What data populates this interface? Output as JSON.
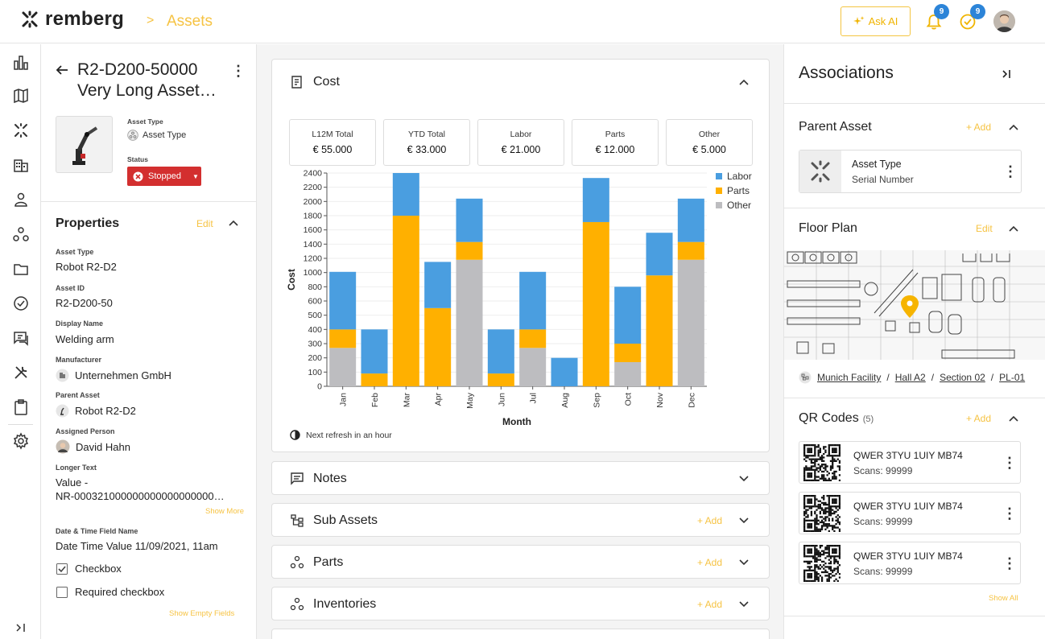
{
  "header": {
    "logo_text": "remberg",
    "breadcrumb_sep": ">",
    "breadcrumb": "Assets",
    "ask_ai": "Ask AI",
    "notif_count": "9",
    "tasks_count": "9"
  },
  "asset": {
    "title_line1": "R2-D200-50000",
    "title_line2": "Very Long Asset…",
    "type_label": "Asset Type",
    "type_value": "Asset Type",
    "status_label": "Status",
    "status_value": "Stopped"
  },
  "properties": {
    "title": "Properties",
    "edit": "Edit",
    "fields": [
      {
        "label": "Asset Type",
        "value": "Robot R2-D2"
      },
      {
        "label": "Asset ID",
        "value": "R2-D200-50"
      },
      {
        "label": "Display Name",
        "value": "Welding arm"
      },
      {
        "label": "Manufacturer",
        "value": "Unternehmen GmbH"
      },
      {
        "label": "Parent Asset",
        "value": "Robot R2-D2"
      },
      {
        "label": "Assigned Person",
        "value": "David Hahn"
      },
      {
        "label": "Longer Text",
        "value": "Value -",
        "value2": "NR-000321000000000000000000…"
      },
      {
        "label": "Date & Time Field Name",
        "value": "Date Time Value 11/09/2021, 11am"
      }
    ],
    "show_more": "Show More",
    "checkbox1": "Checkbox",
    "checkbox2": "Required checkbox",
    "show_empty": "Show Empty Fields"
  },
  "cost": {
    "title": "Cost",
    "tiles": [
      {
        "label": "L12M Total",
        "value": "€ 55.000"
      },
      {
        "label": "YTD Total",
        "value": "€ 33.000"
      },
      {
        "label": "Labor",
        "value": "€ 21.000"
      },
      {
        "label": "Parts",
        "value": "€ 12.000"
      },
      {
        "label": "Other",
        "value": "€ 5.000"
      }
    ],
    "refresh": "Next refresh in an hour"
  },
  "chart_data": {
    "type": "bar",
    "stacked": true,
    "xlabel": "Month",
    "ylabel": "Cost",
    "ylim": [
      0,
      2400
    ],
    "yticks": [
      0,
      100,
      200,
      300,
      400,
      500,
      600,
      800,
      1000,
      1200,
      1400,
      1600,
      1800,
      2000,
      2200,
      2400
    ],
    "categories": [
      "Jan",
      "Feb",
      "Mar",
      "Apr",
      "May",
      "Jun",
      "Jul",
      "Aug",
      "Sep",
      "Oct",
      "Nov",
      "Dec"
    ],
    "series": [
      {
        "name": "Other",
        "color": "#bdbdc0",
        "values": [
          270,
          0,
          0,
          0,
          1180,
          0,
          270,
          0,
          0,
          170,
          0,
          1180
        ]
      },
      {
        "name": "Parts",
        "color": "#ffb000",
        "values": [
          130,
          90,
          1800,
          550,
          250,
          90,
          130,
          0,
          1710,
          130,
          960,
          250
        ]
      },
      {
        "name": "Labor",
        "color": "#4a9ee0",
        "values": [
          610,
          310,
          600,
          600,
          610,
          310,
          610,
          200,
          620,
          500,
          600,
          610
        ]
      }
    ],
    "legend": [
      "Labor",
      "Parts",
      "Other"
    ]
  },
  "sections": [
    {
      "title": "Notes",
      "add": ""
    },
    {
      "title": "Sub Assets",
      "add": "+ Add"
    },
    {
      "title": "Parts",
      "add": "+ Add"
    },
    {
      "title": "Inventories",
      "add": "+ Add"
    }
  ],
  "associations": {
    "title": "Associations",
    "parent_asset": {
      "title": "Parent Asset",
      "add": "+ Add",
      "name": "Asset Type",
      "serial": "Serial Number"
    },
    "floor_plan": {
      "title": "Floor Plan",
      "edit": "Edit",
      "path": [
        "Munich Facility",
        "Hall A2",
        "Section 02",
        "PL-01"
      ],
      "sep": " / "
    },
    "qr": {
      "title": "QR Codes",
      "count": "(5)",
      "add": "+ Add",
      "items": [
        {
          "code": "QWER 3TYU 1UIY MB74",
          "scans": "Scans: 99999"
        },
        {
          "code": "QWER 3TYU 1UIY MB74",
          "scans": "Scans: 99999"
        },
        {
          "code": "QWER 3TYU 1UIY MB74",
          "scans": "Scans: 99999"
        }
      ],
      "show_all": "Show All"
    }
  }
}
